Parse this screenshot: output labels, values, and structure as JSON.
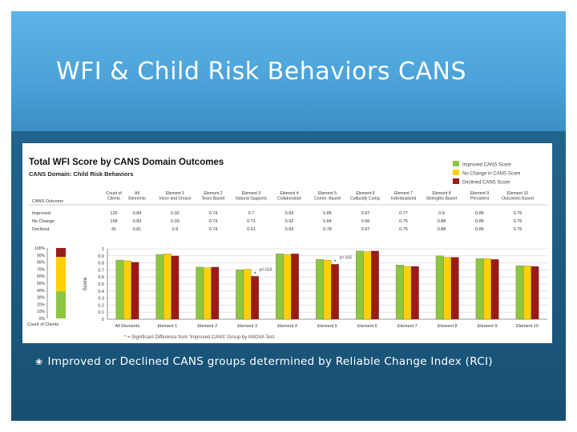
{
  "slide": {
    "title": "WFI & Child Risk Behaviors CANS",
    "bullet_glyph": "❀",
    "bullet_text": "Improved or Declined CANS groups determined by Reliable Change Index (RCI)"
  },
  "colors": {
    "improved": "#8dc63f",
    "no_change": "#ffd100",
    "declined": "#9b1b1b",
    "gridline": "#cccccc",
    "axis": "#444444"
  },
  "chart_data": {
    "type": "bar",
    "title": "Total WFI Score by CANS Domain Outcomes",
    "subtitle": "CANS Domain:  Child Risk Behaviors",
    "ylabel": "Score",
    "ylim": [
      0,
      1
    ],
    "yticks": [
      "0",
      "0.1",
      "0.2",
      "0.3",
      "0.4",
      "0.5",
      "0.6",
      "0.7",
      "0.8",
      "0.9",
      "1"
    ],
    "legend_position": "top-right",
    "legend": [
      "Improved CANS Score",
      "No Change in CANS Score",
      "Declined CANS Score"
    ],
    "categories": [
      "All Elements",
      "Element 1",
      "Element 2",
      "Element 3",
      "Element 4",
      "Element 5",
      "Element 6",
      "Element 7",
      "Element 8",
      "Element 9",
      "Element 10"
    ],
    "table": {
      "outcome_header": "CANS Outcome",
      "count_header": "Count of Clients",
      "column_headers": [
        "All Elements",
        "Element 1 Voice and Choice",
        "Element 2 Team Based",
        "Element 3 Natural Supports",
        "Element 4 Collaborative",
        "Element 5 Comm. Based",
        "Element 6 Culturally Comp.",
        "Element 7 Individualized",
        "Element 8 Strengths Based",
        "Element 9 Persistent",
        "Element 10 Outcomes Based"
      ],
      "rows": [
        {
          "label": "Improved",
          "count": "125",
          "values": [
            "0.84",
            "0.92",
            "0.74",
            "0.7",
            "0.93",
            "0.85",
            "0.97",
            "0.77",
            "0.9",
            "0.86",
            "0.76"
          ]
        },
        {
          "label": "No Change",
          "count": "158",
          "values": [
            "0.83",
            "0.93",
            "0.73",
            "0.71",
            "0.92",
            "0.84",
            "0.96",
            "0.75",
            "0.88",
            "0.86",
            "0.76"
          ]
        },
        {
          "label": "Declined",
          "count": "41",
          "values": [
            "0.81",
            "0.9",
            "0.74",
            "0.61",
            "0.93",
            "0.78",
            "0.97",
            "0.75",
            "0.88",
            "0.85",
            "0.75"
          ]
        }
      ]
    },
    "series": [
      {
        "name": "Improved",
        "values": [
          0.84,
          0.92,
          0.74,
          0.7,
          0.93,
          0.85,
          0.97,
          0.77,
          0.9,
          0.86,
          0.76
        ]
      },
      {
        "name": "No Change",
        "values": [
          0.83,
          0.93,
          0.73,
          0.71,
          0.92,
          0.84,
          0.96,
          0.75,
          0.88,
          0.86,
          0.76
        ]
      },
      {
        "name": "Declined",
        "values": [
          0.81,
          0.9,
          0.74,
          0.61,
          0.93,
          0.78,
          0.97,
          0.75,
          0.88,
          0.85,
          0.75
        ]
      }
    ],
    "annotations": [
      {
        "category": "Element 3",
        "text": "p=.013"
      },
      {
        "category": "Element 5",
        "text": "p=.035"
      }
    ],
    "footnote": "* = Significant Difference from 'Improved CANS' Group by ANOVA Test",
    "count_chart": {
      "label": "Count of Clients",
      "yticks": [
        "0%",
        "10%",
        "20%",
        "30%",
        "40%",
        "50%",
        "60%",
        "70%",
        "80%",
        "90%",
        "100%"
      ],
      "counts": [
        125,
        158,
        41
      ]
    }
  }
}
